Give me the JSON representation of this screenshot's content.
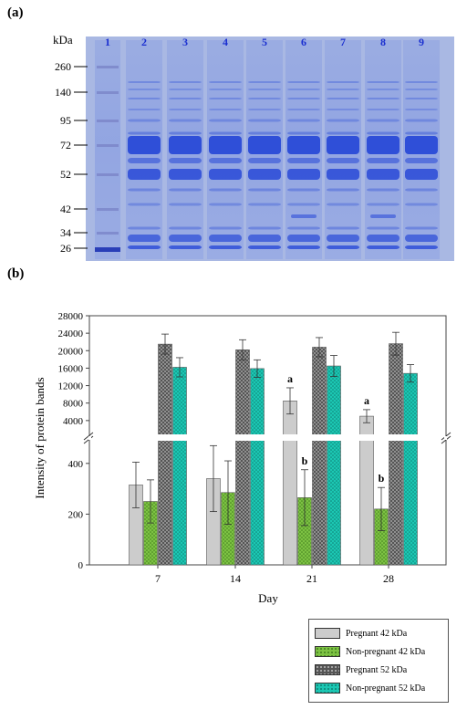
{
  "panel_a": {
    "label": "(a)",
    "marker_unit": "kDa",
    "lane_numbers": [
      "1",
      "2",
      "3",
      "4",
      "5",
      "6",
      "7",
      "8",
      "9"
    ],
    "marker_labels": [
      "260",
      "140",
      "95",
      "72",
      "52",
      "42",
      "34",
      "26"
    ]
  },
  "panel_b": {
    "label": "(b)"
  },
  "colors": {
    "gel_bg": "#a9b8e3",
    "band_dark": "#2f4fd8",
    "lane_num": "#1a2fd0",
    "pregnant_42": "#cccccc",
    "non_pregnant_42": "#7dc243",
    "pregnant_52": "#555555",
    "non_pregnant_52": "#1cc7b3"
  },
  "chart_data": {
    "type": "bar",
    "xlabel": "Day",
    "ylabel": "Intensity of protein bands",
    "categories": [
      "7",
      "14",
      "21",
      "28"
    ],
    "broken_axis": true,
    "lower_ylim": [
      0,
      500
    ],
    "upper_ylim": [
      0,
      28000
    ],
    "lower_yticks": [
      "0",
      "200",
      "400"
    ],
    "upper_yticks": [
      "4000",
      "8000",
      "12000",
      "16000",
      "20000",
      "24000",
      "28000"
    ],
    "series": [
      {
        "name": "Pregnant 42 kDa",
        "values": [
          315,
          340,
          8500,
          5000
        ],
        "errors": [
          90,
          130,
          3000,
          1500
        ],
        "segment": [
          0,
          0,
          1,
          1
        ],
        "labels": [
          "",
          "",
          "a",
          "a"
        ]
      },
      {
        "name": "Non-pregnant 42 kDa",
        "values": [
          250,
          285,
          265,
          220
        ],
        "errors": [
          85,
          125,
          110,
          85
        ],
        "segment": [
          0,
          0,
          0,
          0
        ],
        "labels": [
          "",
          "",
          "b",
          "b"
        ]
      },
      {
        "name": "Pregnant 52 kDa",
        "values": [
          21500,
          20200,
          20800,
          21600
        ],
        "errors": [
          2300,
          2300,
          2200,
          2600
        ],
        "segment": [
          1,
          1,
          1,
          1
        ],
        "labels": [
          "",
          "",
          "",
          ""
        ]
      },
      {
        "name": "Non-pregnant 52 kDa",
        "values": [
          16200,
          15900,
          16500,
          14800
        ],
        "errors": [
          2200,
          2000,
          2400,
          2000
        ],
        "segment": [
          1,
          1,
          1,
          1
        ],
        "labels": [
          "",
          "",
          "",
          ""
        ]
      }
    ]
  }
}
